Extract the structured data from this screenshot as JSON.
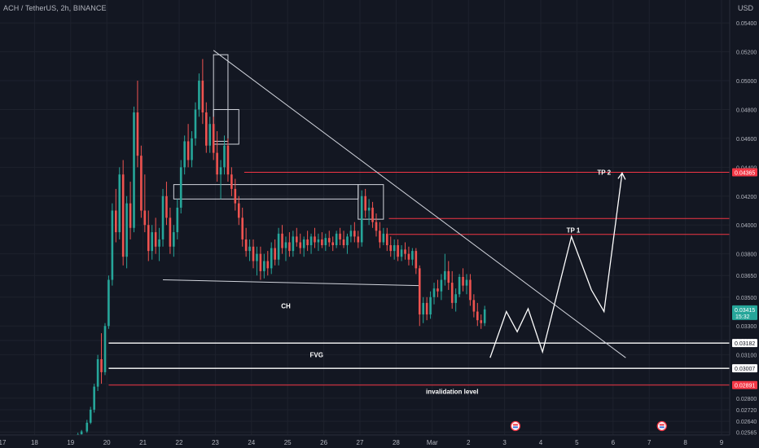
{
  "header": {
    "symbol_line": "ACH / TetherUS, 2h, BINANCE"
  },
  "price_axis": {
    "unit": "USD",
    "ticks": [
      {
        "label": "0.05400",
        "value": 0.054
      },
      {
        "label": "0.05200",
        "value": 0.052
      },
      {
        "label": "0.05000",
        "value": 0.05
      },
      {
        "label": "0.04800",
        "value": 0.048
      },
      {
        "label": "0.04600",
        "value": 0.046
      },
      {
        "label": "0.04400",
        "value": 0.044
      },
      {
        "label": "0.04200",
        "value": 0.042
      },
      {
        "label": "0.04000",
        "value": 0.04
      },
      {
        "label": "0.03800",
        "value": 0.038
      },
      {
        "label": "0.03650",
        "value": 0.0365
      },
      {
        "label": "0.03500",
        "value": 0.035
      },
      {
        "label": "0.03300",
        "value": 0.033
      },
      {
        "label": "0.03200",
        "value": 0.032
      },
      {
        "label": "0.03100",
        "value": 0.031
      },
      {
        "label": "0.02900",
        "value": 0.029
      },
      {
        "label": "0.02800",
        "value": 0.028
      },
      {
        "label": "0.02720",
        "value": 0.0272
      },
      {
        "label": "0.02640",
        "value": 0.0264
      },
      {
        "label": "0.02565",
        "value": 0.02565
      }
    ],
    "badges": [
      {
        "label": "0.04365",
        "value": 0.04365,
        "style": "red"
      },
      {
        "label": "0.03415",
        "value": 0.03415,
        "sub": "15:32",
        "style": "green"
      },
      {
        "label": "0.03182",
        "value": 0.03182,
        "style": "white"
      },
      {
        "label": "0.03007",
        "value": 0.03007,
        "style": "white"
      },
      {
        "label": "0.02891",
        "value": 0.02891,
        "style": "red"
      }
    ]
  },
  "time_axis": {
    "ticks": [
      "17",
      "18",
      "19",
      "20",
      "21",
      "22",
      "23",
      "24",
      "25",
      "26",
      "27",
      "28",
      "Mar",
      "2",
      "3",
      "4",
      "5",
      "6",
      "7",
      "8",
      "9"
    ]
  },
  "annotations": {
    "tp1": "TP 1",
    "tp2": "TP 2",
    "ch": "CH",
    "fvg": "FVG",
    "invalidation": "invalidation level"
  },
  "colors": {
    "background": "#131722",
    "up": "#26a69a",
    "down": "#ef5350",
    "grid": "#1e222d",
    "text": "#b2b5be",
    "level_red": "#f23645",
    "level_white": "#ffffff"
  },
  "chart_data": {
    "type": "candlestick",
    "title": "ACH / TetherUS, 2h, BINANCE",
    "xlabel": "",
    "ylabel": "",
    "ylim": [
      0.02545,
      0.0548
    ],
    "x_range_days": [
      "Feb 17",
      "Mar 9"
    ],
    "candles": [
      {
        "t": 19.2,
        "o": 0.0253,
        "h": 0.0256,
        "l": 0.0252,
        "c": 0.0255
      },
      {
        "t": 19.3,
        "o": 0.0255,
        "h": 0.0258,
        "l": 0.0253,
        "c": 0.0257
      },
      {
        "t": 19.45,
        "o": 0.0257,
        "h": 0.0265,
        "l": 0.0256,
        "c": 0.0263
      },
      {
        "t": 19.55,
        "o": 0.0263,
        "h": 0.0274,
        "l": 0.0262,
        "c": 0.0272
      },
      {
        "t": 19.65,
        "o": 0.0272,
        "h": 0.029,
        "l": 0.027,
        "c": 0.0288
      },
      {
        "t": 19.75,
        "o": 0.0288,
        "h": 0.031,
        "l": 0.0285,
        "c": 0.0307
      },
      {
        "t": 19.85,
        "o": 0.0307,
        "h": 0.0325,
        "l": 0.029,
        "c": 0.0298
      },
      {
        "t": 19.95,
        "o": 0.0298,
        "h": 0.0332,
        "l": 0.0296,
        "c": 0.033
      },
      {
        "t": 20.05,
        "o": 0.033,
        "h": 0.0365,
        "l": 0.0328,
        "c": 0.0362
      },
      {
        "t": 20.15,
        "o": 0.0362,
        "h": 0.0415,
        "l": 0.0358,
        "c": 0.041
      },
      {
        "t": 20.25,
        "o": 0.041,
        "h": 0.0425,
        "l": 0.0388,
        "c": 0.0395
      },
      {
        "t": 20.35,
        "o": 0.0395,
        "h": 0.044,
        "l": 0.039,
        "c": 0.0435
      },
      {
        "t": 20.45,
        "o": 0.0435,
        "h": 0.0445,
        "l": 0.0372,
        "c": 0.0378
      },
      {
        "t": 20.55,
        "o": 0.0378,
        "h": 0.042,
        "l": 0.037,
        "c": 0.0415
      },
      {
        "t": 20.65,
        "o": 0.0415,
        "h": 0.043,
        "l": 0.039,
        "c": 0.0398
      },
      {
        "t": 20.75,
        "o": 0.0398,
        "h": 0.0482,
        "l": 0.0395,
        "c": 0.0478
      },
      {
        "t": 20.85,
        "o": 0.0478,
        "h": 0.05,
        "l": 0.044,
        "c": 0.0448
      },
      {
        "t": 20.95,
        "o": 0.0448,
        "h": 0.0455,
        "l": 0.0405,
        "c": 0.041
      },
      {
        "t": 21.05,
        "o": 0.041,
        "h": 0.0435,
        "l": 0.0395,
        "c": 0.04
      },
      {
        "t": 21.15,
        "o": 0.04,
        "h": 0.041,
        "l": 0.0375,
        "c": 0.0382
      },
      {
        "t": 21.25,
        "o": 0.0382,
        "h": 0.04,
        "l": 0.0376,
        "c": 0.0395
      },
      {
        "t": 21.35,
        "o": 0.0395,
        "h": 0.0405,
        "l": 0.038,
        "c": 0.0385
      },
      {
        "t": 21.45,
        "o": 0.0385,
        "h": 0.0398,
        "l": 0.0375,
        "c": 0.039
      },
      {
        "t": 21.55,
        "o": 0.039,
        "h": 0.0425,
        "l": 0.0385,
        "c": 0.042
      },
      {
        "t": 21.65,
        "o": 0.042,
        "h": 0.043,
        "l": 0.04,
        "c": 0.0405
      },
      {
        "t": 21.75,
        "o": 0.0405,
        "h": 0.0412,
        "l": 0.038,
        "c": 0.0385
      },
      {
        "t": 21.85,
        "o": 0.0385,
        "h": 0.04,
        "l": 0.0378,
        "c": 0.0395
      },
      {
        "t": 21.95,
        "o": 0.0395,
        "h": 0.0418,
        "l": 0.039,
        "c": 0.0412
      },
      {
        "t": 22.05,
        "o": 0.0412,
        "h": 0.0445,
        "l": 0.0408,
        "c": 0.044
      },
      {
        "t": 22.15,
        "o": 0.044,
        "h": 0.0462,
        "l": 0.0435,
        "c": 0.0458
      },
      {
        "t": 22.25,
        "o": 0.0458,
        "h": 0.047,
        "l": 0.044,
        "c": 0.0445
      },
      {
        "t": 22.35,
        "o": 0.0445,
        "h": 0.0465,
        "l": 0.044,
        "c": 0.046
      },
      {
        "t": 22.45,
        "o": 0.046,
        "h": 0.0485,
        "l": 0.0455,
        "c": 0.048
      },
      {
        "t": 22.55,
        "o": 0.048,
        "h": 0.0505,
        "l": 0.0475,
        "c": 0.05
      },
      {
        "t": 22.65,
        "o": 0.05,
        "h": 0.0515,
        "l": 0.047,
        "c": 0.0478
      },
      {
        "t": 22.75,
        "o": 0.0478,
        "h": 0.0485,
        "l": 0.045,
        "c": 0.0455
      },
      {
        "t": 22.85,
        "o": 0.0455,
        "h": 0.0475,
        "l": 0.045,
        "c": 0.047
      },
      {
        "t": 22.95,
        "o": 0.047,
        "h": 0.0475,
        "l": 0.0445,
        "c": 0.045
      },
      {
        "t": 23.05,
        "o": 0.045,
        "h": 0.0465,
        "l": 0.043,
        "c": 0.0435
      },
      {
        "t": 23.15,
        "o": 0.0435,
        "h": 0.0445,
        "l": 0.0418,
        "c": 0.044
      },
      {
        "t": 23.25,
        "o": 0.044,
        "h": 0.0462,
        "l": 0.0435,
        "c": 0.0455
      },
      {
        "t": 23.35,
        "o": 0.0455,
        "h": 0.046,
        "l": 0.043,
        "c": 0.0435
      },
      {
        "t": 23.45,
        "o": 0.0435,
        "h": 0.044,
        "l": 0.042,
        "c": 0.0425
      },
      {
        "t": 23.55,
        "o": 0.0425,
        "h": 0.0432,
        "l": 0.041,
        "c": 0.0415
      },
      {
        "t": 23.65,
        "o": 0.0415,
        "h": 0.042,
        "l": 0.04,
        "c": 0.0405
      },
      {
        "t": 23.75,
        "o": 0.0405,
        "h": 0.0412,
        "l": 0.0385,
        "c": 0.039
      },
      {
        "t": 23.85,
        "o": 0.039,
        "h": 0.0398,
        "l": 0.0378,
        "c": 0.0382
      },
      {
        "t": 23.95,
        "o": 0.0382,
        "h": 0.039,
        "l": 0.0375,
        "c": 0.0385
      },
      {
        "t": 24.05,
        "o": 0.0385,
        "h": 0.039,
        "l": 0.037,
        "c": 0.0375
      },
      {
        "t": 24.15,
        "o": 0.0375,
        "h": 0.0385,
        "l": 0.0365,
        "c": 0.038
      },
      {
        "t": 24.25,
        "o": 0.038,
        "h": 0.0385,
        "l": 0.0362,
        "c": 0.0368
      },
      {
        "t": 24.35,
        "o": 0.0368,
        "h": 0.038,
        "l": 0.0363,
        "c": 0.0375
      },
      {
        "t": 24.45,
        "o": 0.0375,
        "h": 0.0382,
        "l": 0.0365,
        "c": 0.037
      },
      {
        "t": 24.55,
        "o": 0.037,
        "h": 0.0388,
        "l": 0.0366,
        "c": 0.0384
      },
      {
        "t": 24.65,
        "o": 0.0384,
        "h": 0.039,
        "l": 0.0372,
        "c": 0.0376
      },
      {
        "t": 24.75,
        "o": 0.0376,
        "h": 0.0398,
        "l": 0.0372,
        "c": 0.0394
      },
      {
        "t": 24.85,
        "o": 0.0394,
        "h": 0.04,
        "l": 0.038,
        "c": 0.0384
      },
      {
        "t": 24.95,
        "o": 0.0384,
        "h": 0.0392,
        "l": 0.0375,
        "c": 0.0388
      },
      {
        "t": 25.05,
        "o": 0.0388,
        "h": 0.0395,
        "l": 0.0378,
        "c": 0.0382
      },
      {
        "t": 25.15,
        "o": 0.0382,
        "h": 0.0396,
        "l": 0.0378,
        "c": 0.0392
      },
      {
        "t": 25.25,
        "o": 0.0392,
        "h": 0.0398,
        "l": 0.0385,
        "c": 0.0388
      },
      {
        "t": 25.35,
        "o": 0.0388,
        "h": 0.0394,
        "l": 0.038,
        "c": 0.0384
      },
      {
        "t": 25.45,
        "o": 0.0384,
        "h": 0.0392,
        "l": 0.0378,
        "c": 0.039
      },
      {
        "t": 25.55,
        "o": 0.039,
        "h": 0.0396,
        "l": 0.0382,
        "c": 0.0386
      },
      {
        "t": 25.65,
        "o": 0.0386,
        "h": 0.0394,
        "l": 0.038,
        "c": 0.0392
      },
      {
        "t": 25.75,
        "o": 0.0392,
        "h": 0.0398,
        "l": 0.0384,
        "c": 0.0388
      },
      {
        "t": 25.85,
        "o": 0.0388,
        "h": 0.0394,
        "l": 0.0382,
        "c": 0.039
      },
      {
        "t": 25.95,
        "o": 0.039,
        "h": 0.0395,
        "l": 0.0384,
        "c": 0.0386
      },
      {
        "t": 26.05,
        "o": 0.0386,
        "h": 0.0394,
        "l": 0.0382,
        "c": 0.0391
      },
      {
        "t": 26.15,
        "o": 0.0391,
        "h": 0.0396,
        "l": 0.0385,
        "c": 0.0388
      },
      {
        "t": 26.25,
        "o": 0.0388,
        "h": 0.0392,
        "l": 0.0382,
        "c": 0.0386
      },
      {
        "t": 26.35,
        "o": 0.0386,
        "h": 0.0396,
        "l": 0.0384,
        "c": 0.0394
      },
      {
        "t": 26.45,
        "o": 0.0394,
        "h": 0.0398,
        "l": 0.0386,
        "c": 0.039
      },
      {
        "t": 26.55,
        "o": 0.039,
        "h": 0.0396,
        "l": 0.0384,
        "c": 0.0386
      },
      {
        "t": 26.65,
        "o": 0.0386,
        "h": 0.0394,
        "l": 0.038,
        "c": 0.0392
      },
      {
        "t": 26.75,
        "o": 0.0392,
        "h": 0.04,
        "l": 0.0388,
        "c": 0.0396
      },
      {
        "t": 26.85,
        "o": 0.0396,
        "h": 0.0402,
        "l": 0.0388,
        "c": 0.0392
      },
      {
        "t": 26.95,
        "o": 0.0392,
        "h": 0.0396,
        "l": 0.0384,
        "c": 0.0388
      },
      {
        "t": 27.05,
        "o": 0.0388,
        "h": 0.0424,
        "l": 0.0385,
        "c": 0.042
      },
      {
        "t": 27.15,
        "o": 0.042,
        "h": 0.0425,
        "l": 0.0405,
        "c": 0.041
      },
      {
        "t": 27.25,
        "o": 0.041,
        "h": 0.0418,
        "l": 0.04,
        "c": 0.0412
      },
      {
        "t": 27.35,
        "o": 0.0412,
        "h": 0.0416,
        "l": 0.0398,
        "c": 0.0402
      },
      {
        "t": 27.45,
        "o": 0.0402,
        "h": 0.0408,
        "l": 0.0392,
        "c": 0.0396
      },
      {
        "t": 27.55,
        "o": 0.0396,
        "h": 0.0402,
        "l": 0.0384,
        "c": 0.0388
      },
      {
        "t": 27.65,
        "o": 0.0388,
        "h": 0.0398,
        "l": 0.0386,
        "c": 0.0394
      },
      {
        "t": 27.75,
        "o": 0.0394,
        "h": 0.0398,
        "l": 0.0382,
        "c": 0.0386
      },
      {
        "t": 27.85,
        "o": 0.0386,
        "h": 0.0392,
        "l": 0.0378,
        "c": 0.0382
      },
      {
        "t": 27.95,
        "o": 0.0382,
        "h": 0.039,
        "l": 0.0376,
        "c": 0.0386
      },
      {
        "t": 28.05,
        "o": 0.0386,
        "h": 0.039,
        "l": 0.0375,
        "c": 0.0378
      },
      {
        "t": 28.15,
        "o": 0.0378,
        "h": 0.0386,
        "l": 0.0375,
        "c": 0.0383
      },
      {
        "t": 28.25,
        "o": 0.0383,
        "h": 0.0388,
        "l": 0.0376,
        "c": 0.038
      },
      {
        "t": 28.35,
        "o": 0.038,
        "h": 0.0385,
        "l": 0.0372,
        "c": 0.0376
      },
      {
        "t": 28.45,
        "o": 0.0376,
        "h": 0.0384,
        "l": 0.0372,
        "c": 0.0382
      },
      {
        "t": 28.55,
        "o": 0.0382,
        "h": 0.0384,
        "l": 0.0366,
        "c": 0.037
      },
      {
        "t": 28.65,
        "o": 0.037,
        "h": 0.0372,
        "l": 0.033,
        "c": 0.0338
      },
      {
        "t": 28.75,
        "o": 0.0338,
        "h": 0.035,
        "l": 0.0332,
        "c": 0.0346
      },
      {
        "t": 28.85,
        "o": 0.0346,
        "h": 0.035,
        "l": 0.0334,
        "c": 0.0338
      },
      {
        "t": 28.95,
        "o": 0.0338,
        "h": 0.0354,
        "l": 0.0335,
        "c": 0.035
      },
      {
        "t": 29.05,
        "o": 0.035,
        "h": 0.036,
        "l": 0.0345,
        "c": 0.0356
      },
      {
        "t": 29.15,
        "o": 0.0356,
        "h": 0.0362,
        "l": 0.035,
        "c": 0.0354
      },
      {
        "t": 29.25,
        "o": 0.0354,
        "h": 0.0366,
        "l": 0.0348,
        "c": 0.0362
      },
      {
        "t": 29.35,
        "o": 0.0362,
        "h": 0.038,
        "l": 0.0358,
        "c": 0.0368
      },
      {
        "t": 29.45,
        "o": 0.0368,
        "h": 0.0375,
        "l": 0.0355,
        "c": 0.036
      },
      {
        "t": 29.55,
        "o": 0.036,
        "h": 0.0368,
        "l": 0.0342,
        "c": 0.0346
      },
      {
        "t": 29.65,
        "o": 0.0346,
        "h": 0.0356,
        "l": 0.034,
        "c": 0.0352
      },
      {
        "t": 29.75,
        "o": 0.0352,
        "h": 0.0366,
        "l": 0.035,
        "c": 0.0364
      },
      {
        "t": 29.85,
        "o": 0.0364,
        "h": 0.037,
        "l": 0.0354,
        "c": 0.0358
      },
      {
        "t": 29.95,
        "o": 0.0358,
        "h": 0.0366,
        "l": 0.0352,
        "c": 0.0362
      },
      {
        "t": 30.05,
        "o": 0.0362,
        "h": 0.0366,
        "l": 0.0344,
        "c": 0.0348
      },
      {
        "t": 30.15,
        "o": 0.0348,
        "h": 0.0352,
        "l": 0.0336,
        "c": 0.034
      },
      {
        "t": 30.25,
        "o": 0.034,
        "h": 0.0346,
        "l": 0.033,
        "c": 0.0334
      },
      {
        "t": 30.35,
        "o": 0.0334,
        "h": 0.0338,
        "l": 0.0328,
        "c": 0.0332
      },
      {
        "t": 30.45,
        "o": 0.0332,
        "h": 0.0344,
        "l": 0.033,
        "c": 0.03415
      }
    ],
    "levels": [
      {
        "value": 0.04365,
        "color": "red",
        "label": "TP 2"
      },
      {
        "value": 0.04045,
        "color": "red"
      },
      {
        "value": 0.03935,
        "color": "red",
        "label": "TP 1"
      },
      {
        "value": 0.03182,
        "color": "white",
        "label": "FVG (top)"
      },
      {
        "value": 0.03007,
        "color": "white",
        "label": "FVG (bottom)"
      },
      {
        "value": 0.02891,
        "color": "red",
        "label": "invalidation level"
      }
    ],
    "projection_path": [
      [
        30.6,
        0.0308
      ],
      [
        31.05,
        0.034
      ],
      [
        31.35,
        0.0326
      ],
      [
        31.65,
        0.0342
      ],
      [
        32.05,
        0.0312
      ],
      [
        32.85,
        0.0392
      ],
      [
        33.4,
        0.0355
      ],
      [
        33.75,
        0.034
      ],
      [
        34.25,
        0.0436
      ]
    ]
  }
}
